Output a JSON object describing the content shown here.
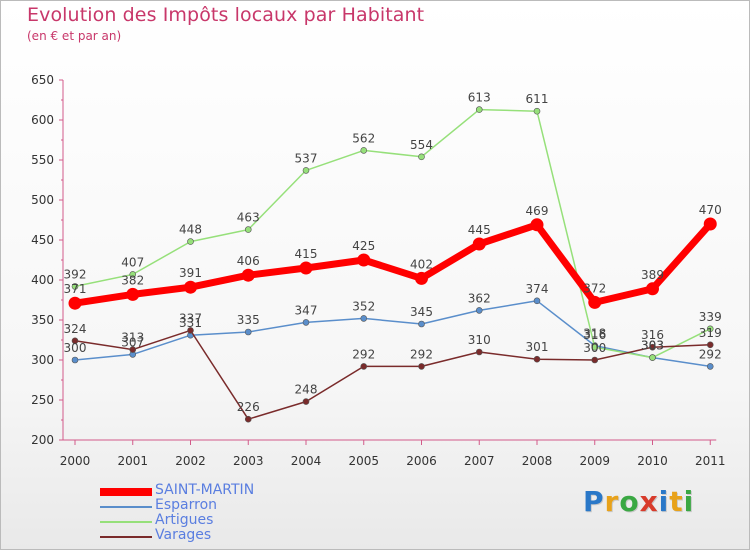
{
  "title": "Evolution des Impôts locaux par Habitant",
  "subtitle": "(en € et par an)",
  "logo": {
    "letters": [
      {
        "ch": "P",
        "color": "#2a78c8"
      },
      {
        "ch": "r",
        "color": "#e8a21a"
      },
      {
        "ch": "o",
        "color": "#3aa843"
      },
      {
        "ch": "x",
        "color": "#d83b2b"
      },
      {
        "ch": "i",
        "color": "#2a78c8"
      },
      {
        "ch": "t",
        "color": "#e8a21a"
      },
      {
        "ch": "i",
        "color": "#3aa843"
      }
    ]
  },
  "chart_data": {
    "type": "line",
    "title": "Evolution des Impôts locaux par Habitant",
    "subtitle": "(en € et par an)",
    "xlabel": "",
    "ylabel": "",
    "categories": [
      "2000",
      "2001",
      "2002",
      "2003",
      "2004",
      "2005",
      "2006",
      "2007",
      "2008",
      "2009",
      "2010",
      "2011"
    ],
    "ylim": [
      200,
      650
    ],
    "yticks": [
      200,
      250,
      300,
      350,
      400,
      450,
      500,
      550,
      600,
      650
    ],
    "grid": false,
    "legend": "bottom-left",
    "series": [
      {
        "name": "SAINT-MARTIN",
        "color": "#ff0000",
        "values": [
          371,
          382,
          391,
          406,
          415,
          425,
          402,
          445,
          469,
          372,
          389,
          470
        ]
      },
      {
        "name": "Esparron",
        "color": "#5a8ecb",
        "values": [
          300,
          307,
          331,
          335,
          347,
          352,
          345,
          362,
          374,
          318,
          303,
          292
        ]
      },
      {
        "name": "Artigues",
        "color": "#96e07a",
        "values": [
          392,
          407,
          448,
          463,
          537,
          562,
          554,
          613,
          611,
          316,
          303,
          339
        ]
      },
      {
        "name": "Varages",
        "color": "#7a2b2b",
        "values": [
          324,
          313,
          337,
          226,
          248,
          292,
          292,
          310,
          301,
          300,
          316,
          319
        ]
      }
    ]
  }
}
